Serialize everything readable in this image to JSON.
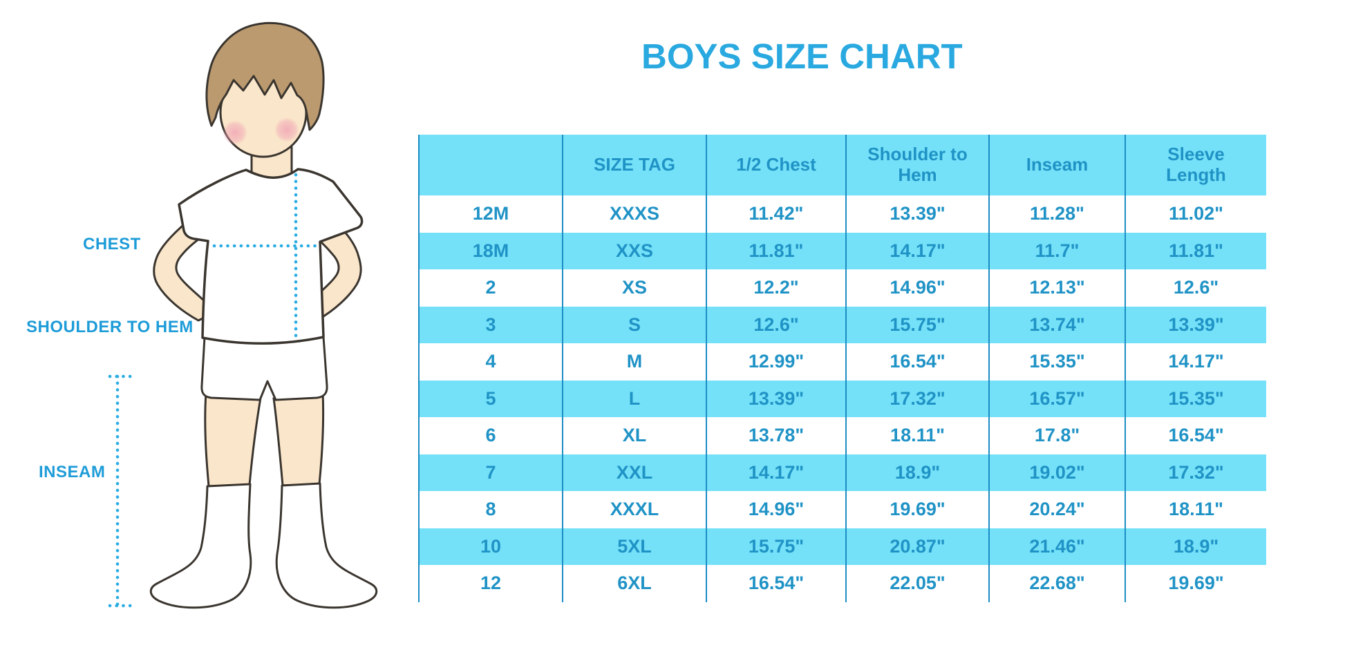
{
  "title": "BOYS SIZE CHART",
  "figure": {
    "labels": {
      "chest": "CHEST",
      "shoulder_to_hem": "SHOULDER TO HEM",
      "inseam": "INSEAM"
    }
  },
  "colors": {
    "accent_blue": "#29A9E0",
    "table_fill_cyan": "#74E1F8",
    "table_text_blue": "#2093C6",
    "divider_blue": "#1C8CC4",
    "dotted_line_blue": "#2BACE3",
    "skin": "#FAE6CA",
    "hair_brown": "#BC9A70",
    "blush_pink": "#F0A2B4",
    "outline_dark": "#3A352F"
  },
  "chart_data": {
    "type": "table",
    "title": "BOYS SIZE CHART",
    "columns": [
      "",
      "SIZE TAG",
      "1/2 Chest",
      "Shoulder to Hem",
      "Inseam",
      "Sleeve Length"
    ],
    "rows": [
      [
        "12M",
        "XXXS",
        "11.42\"",
        "13.39\"",
        "11.28\"",
        "11.02\""
      ],
      [
        "18M",
        "XXS",
        "11.81\"",
        "14.17\"",
        "11.7\"",
        "11.81\""
      ],
      [
        "2",
        "XS",
        "12.2\"",
        "14.96\"",
        "12.13\"",
        "12.6\""
      ],
      [
        "3",
        "S",
        "12.6\"",
        "15.75\"",
        "13.74\"",
        "13.39\""
      ],
      [
        "4",
        "M",
        "12.99\"",
        "16.54\"",
        "15.35\"",
        "14.17\""
      ],
      [
        "5",
        "L",
        "13.39\"",
        "17.32\"",
        "16.57\"",
        "15.35\""
      ],
      [
        "6",
        "XL",
        "13.78\"",
        "18.11\"",
        "17.8\"",
        "16.54\""
      ],
      [
        "7",
        "XXL",
        "14.17\"",
        "18.9\"",
        "19.02\"",
        "17.32\""
      ],
      [
        "8",
        "XXXL",
        "14.96\"",
        "19.69\"",
        "20.24\"",
        "18.11\""
      ],
      [
        "10",
        "5XL",
        "15.75\"",
        "20.87\"",
        "21.46\"",
        "18.9\""
      ],
      [
        "12",
        "6XL",
        "16.54\"",
        "22.05\"",
        "22.68\"",
        "19.69\""
      ]
    ],
    "measurement_lines": [
      "chest",
      "shoulder to hem",
      "inseam"
    ],
    "layout_hint": "rows alternate white and cyan starting with white; no horizontal rules; blue vertical column separators"
  }
}
